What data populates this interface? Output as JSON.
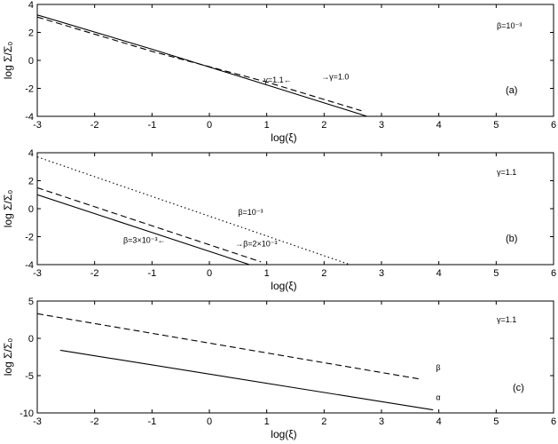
{
  "chart_data": [
    {
      "type": "line",
      "panel_label": "(a)",
      "annotation": "β=10⁻³",
      "xlabel": "log(ξ)",
      "ylabel": "log Σ/Σ₀",
      "xlim": [
        -3,
        6
      ],
      "ylim": [
        -4,
        4
      ],
      "xticks": [
        -3,
        -2,
        -1,
        0,
        1,
        2,
        3,
        4,
        5,
        6
      ],
      "yticks": [
        -4,
        -2,
        0,
        2,
        4
      ],
      "grid": false,
      "series": [
        {
          "label": "γ=1.1",
          "style": "solid",
          "x": [
            -3,
            -1,
            1,
            2.75
          ],
          "y": [
            3.25,
            0.8,
            -1.75,
            -4.0
          ]
        },
        {
          "label": "γ=1.0",
          "style": "dashed",
          "x": [
            -3,
            -1,
            1,
            2.65
          ],
          "y": [
            3.1,
            0.65,
            -1.55,
            -3.6
          ]
        }
      ],
      "labels": [
        {
          "text": "γ=1.1←",
          "x": 0.95,
          "y": -1.6
        },
        {
          "text": "→γ=1.0",
          "x": 1.95,
          "y": -1.35
        }
      ]
    },
    {
      "type": "line",
      "panel_label": "(b)",
      "annotation": "γ=1.1",
      "xlabel": "log(ξ)",
      "ylabel": "log Σ/Σ₀",
      "xlim": [
        -3,
        6
      ],
      "ylim": [
        -4,
        4
      ],
      "xticks": [
        -3,
        -2,
        -1,
        0,
        1,
        2,
        3,
        4,
        5,
        6
      ],
      "yticks": [
        -4,
        -2,
        0,
        2,
        4
      ],
      "grid": false,
      "series": [
        {
          "label": "β=3×10⁻³",
          "style": "solid",
          "x": [
            -3,
            0.7
          ],
          "y": [
            1.0,
            -4.0
          ]
        },
        {
          "label": "β=2×10⁻³",
          "style": "dashed",
          "x": [
            -3,
            0.9
          ],
          "y": [
            1.5,
            -3.8
          ]
        },
        {
          "label": "β=10⁻³",
          "style": "dotted",
          "x": [
            -3,
            2.45
          ],
          "y": [
            3.7,
            -4.0
          ]
        }
      ],
      "labels": [
        {
          "text": "β=10⁻³",
          "x": 0.5,
          "y": -0.45
        },
        {
          "text": "β=3×10⁻³←",
          "x": -1.5,
          "y": -2.45
        },
        {
          "text": "→β=2×10⁻³",
          "x": 0.45,
          "y": -2.7
        }
      ]
    },
    {
      "type": "line",
      "panel_label": "(c)",
      "annotation": "γ=1.1",
      "xlabel": "log(ξ)",
      "ylabel": "log Σ/Σ₀",
      "xlim": [
        -3,
        6
      ],
      "ylim": [
        -10,
        5
      ],
      "xticks": [
        -3,
        -2,
        -1,
        0,
        1,
        2,
        3,
        4,
        5,
        6
      ],
      "yticks": [
        -10,
        -5,
        0,
        5
      ],
      "grid": false,
      "series": [
        {
          "label": "β",
          "style": "dashed",
          "x": [
            -3,
            3.7
          ],
          "y": [
            3.3,
            -5.5
          ]
        },
        {
          "label": "α",
          "style": "solid",
          "x": [
            -2.6,
            3.9
          ],
          "y": [
            -1.6,
            -9.6
          ]
        }
      ],
      "labels": [
        {
          "text": "β",
          "x": 3.95,
          "y": -4.3
        },
        {
          "text": "α",
          "x": 3.95,
          "y": -8.3
        }
      ]
    }
  ]
}
